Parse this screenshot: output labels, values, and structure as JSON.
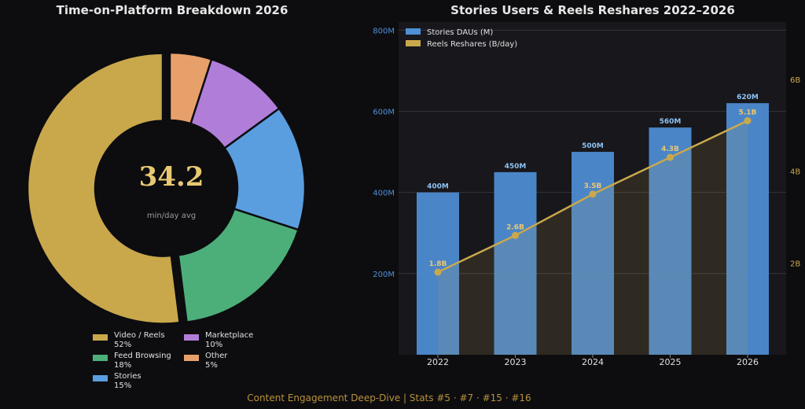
{
  "footer": "Content Engagement Deep-Dive  |  Stats #5 · #7 · #15 · #16",
  "chart_data": [
    {
      "type": "pie",
      "title": "Time-on-Platform Breakdown 2026",
      "center_value": "34.2",
      "center_label": "min/day avg",
      "categories": [
        "Video / Reels",
        "Marketplace",
        "Feed Browsing",
        "Other",
        "Stories"
      ],
      "values": [
        52,
        10,
        18,
        5,
        15
      ],
      "value_labels": [
        "52%",
        "10%",
        "18%",
        "5%",
        "15%"
      ],
      "slices": [
        {
          "name": "Other",
          "value": 5,
          "color": "#e8a06a"
        },
        {
          "name": "Marketplace",
          "value": 10,
          "color": "#b07ed8"
        },
        {
          "name": "Stories",
          "value": 15,
          "color": "#5a9ee0"
        },
        {
          "name": "Feed Browsing",
          "value": 18,
          "color": "#4caf7a"
        },
        {
          "name": "Video / Reels",
          "value": 52,
          "color": "#c9a84c"
        }
      ],
      "explode": "Video / Reels",
      "legend_placement": "bottom"
    },
    {
      "type": "bar",
      "title": "Stories Users & Reels Reshares 2022–2026",
      "categories": [
        "2022",
        "2023",
        "2024",
        "2025",
        "2026"
      ],
      "series": [
        {
          "name": "Stories DAUs (M)",
          "type": "bar",
          "axis": "left",
          "values": [
            400,
            450,
            500,
            560,
            620
          ],
          "value_labels": [
            "400M",
            "450M",
            "500M",
            "560M",
            "620M"
          ],
          "color": "#4f8fd6"
        },
        {
          "name": "Reels Reshares (B/day)",
          "type": "line",
          "axis": "right",
          "values": [
            1.8,
            2.6,
            3.5,
            4.3,
            5.1
          ],
          "value_labels": [
            "1.8B",
            "2.6B",
            "3.5B",
            "4.3B",
            "5.1B"
          ],
          "color": "#c9a84c"
        }
      ],
      "y_left": {
        "ticks": [
          200,
          400,
          600,
          800
        ],
        "tick_labels": [
          "200M",
          "400M",
          "600M",
          "800M"
        ],
        "ylim": [
          0,
          820
        ],
        "color": "#4f8fd6"
      },
      "y_right": {
        "ticks": [
          2,
          4,
          6
        ],
        "tick_labels": [
          "2B",
          "4B",
          "6B"
        ],
        "ylim": [
          0,
          7.25
        ],
        "color": "#c9a84c"
      },
      "grid": true,
      "legend_placement": "top-left"
    }
  ]
}
